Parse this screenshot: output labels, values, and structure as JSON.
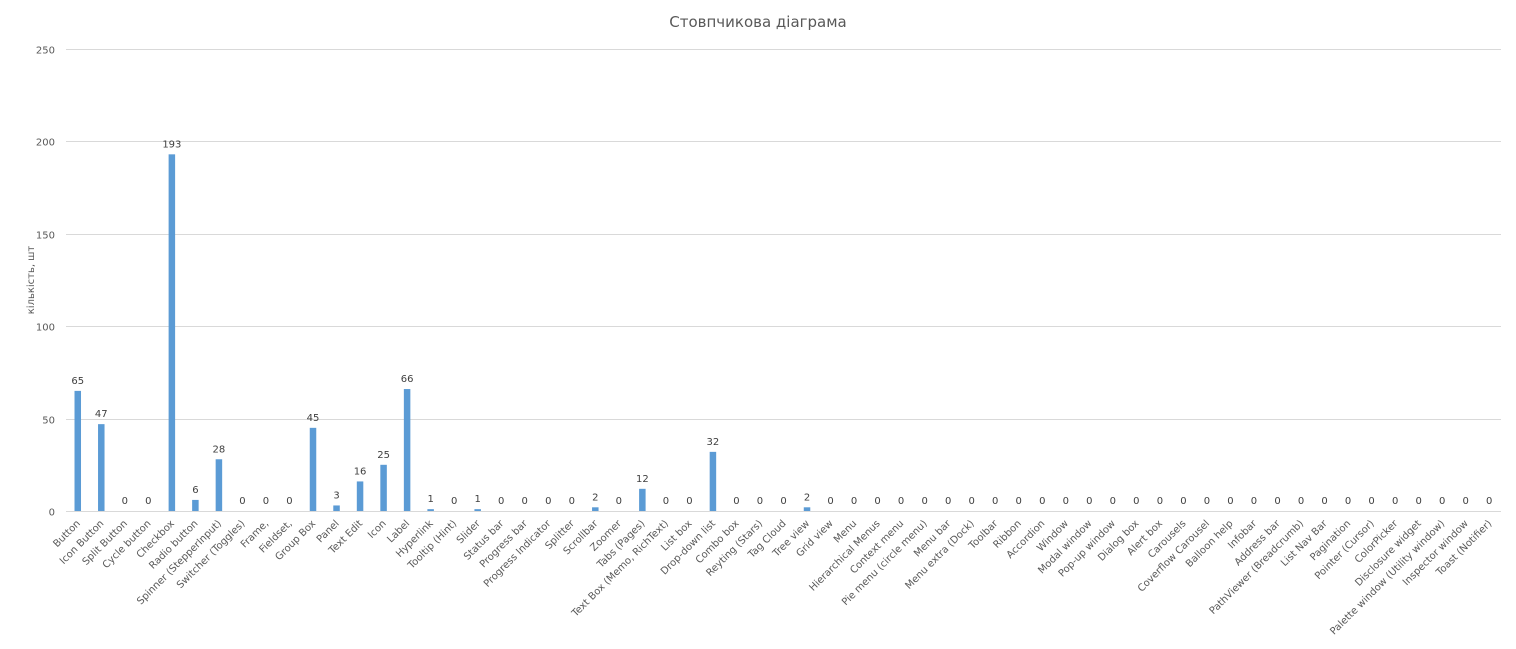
{
  "chart_data": {
    "type": "bar",
    "title": "Стовпчикова діаграма",
    "xlabel": "",
    "ylabel": "кількість, шт",
    "ylim": [
      0,
      250
    ],
    "yticks": [
      0,
      50,
      100,
      150,
      200,
      250
    ],
    "grid": true,
    "legend": "none",
    "color": "#5b9bd5",
    "categories": [
      "Button",
      "Icon Button",
      "Split Button",
      "Cycle button",
      "Checkbox",
      "Radio button",
      "Spinner (StepperInput)",
      "Switcher (Toggles)",
      "Frame,",
      "Fieldset,",
      "Group Box",
      "Panel",
      "Text Edit",
      "Icon",
      "Label",
      "Hyperlink",
      "Tooltip (Hint)",
      "Slider",
      "Status bar",
      "Progress bar",
      "Progress Indicator",
      "Splitter",
      "Scrollbar",
      "Zoomer",
      "Tabs (Pages)",
      "Text Box (Memo, RichText)",
      "List box",
      "Drop-down list",
      "Combo box",
      "Reyting (Stars)",
      "Tag Cloud",
      "Tree view",
      "Grid view",
      "Menu",
      "Hierarchical Menus",
      "Context menu",
      "Pie menu (circle menu)",
      "Menu bar",
      "Menu extra (Dock)",
      "Toolbar",
      "Ribbon",
      "Accordion",
      "Window",
      "Modal window",
      "Pop-up window",
      "Dialog box",
      "Alert box",
      "Carousels",
      "Coverflow Carousel",
      "Balloon help",
      "Infobar",
      "Address bar",
      "PathViewer (Breadcrumb)",
      "List Nav Bar",
      "Pagination",
      "Pointer (Cursor)",
      "ColorPicker",
      "Disclosure widget",
      "Palette window (Utility window)",
      "Inspector window",
      "Toast (Notifier)"
    ],
    "values": [
      65,
      47,
      0,
      0,
      193,
      6,
      28,
      0,
      0,
      0,
      45,
      3,
      16,
      25,
      66,
      1,
      0,
      1,
      0,
      0,
      0,
      0,
      2,
      0,
      12,
      0,
      0,
      32,
      0,
      0,
      0,
      2,
      0,
      0,
      0,
      0,
      0,
      0,
      0,
      0,
      0,
      0,
      0,
      0,
      0,
      0,
      0,
      0,
      0,
      0,
      0,
      0,
      0,
      0,
      0,
      0,
      0,
      0,
      0,
      0,
      0
    ]
  }
}
